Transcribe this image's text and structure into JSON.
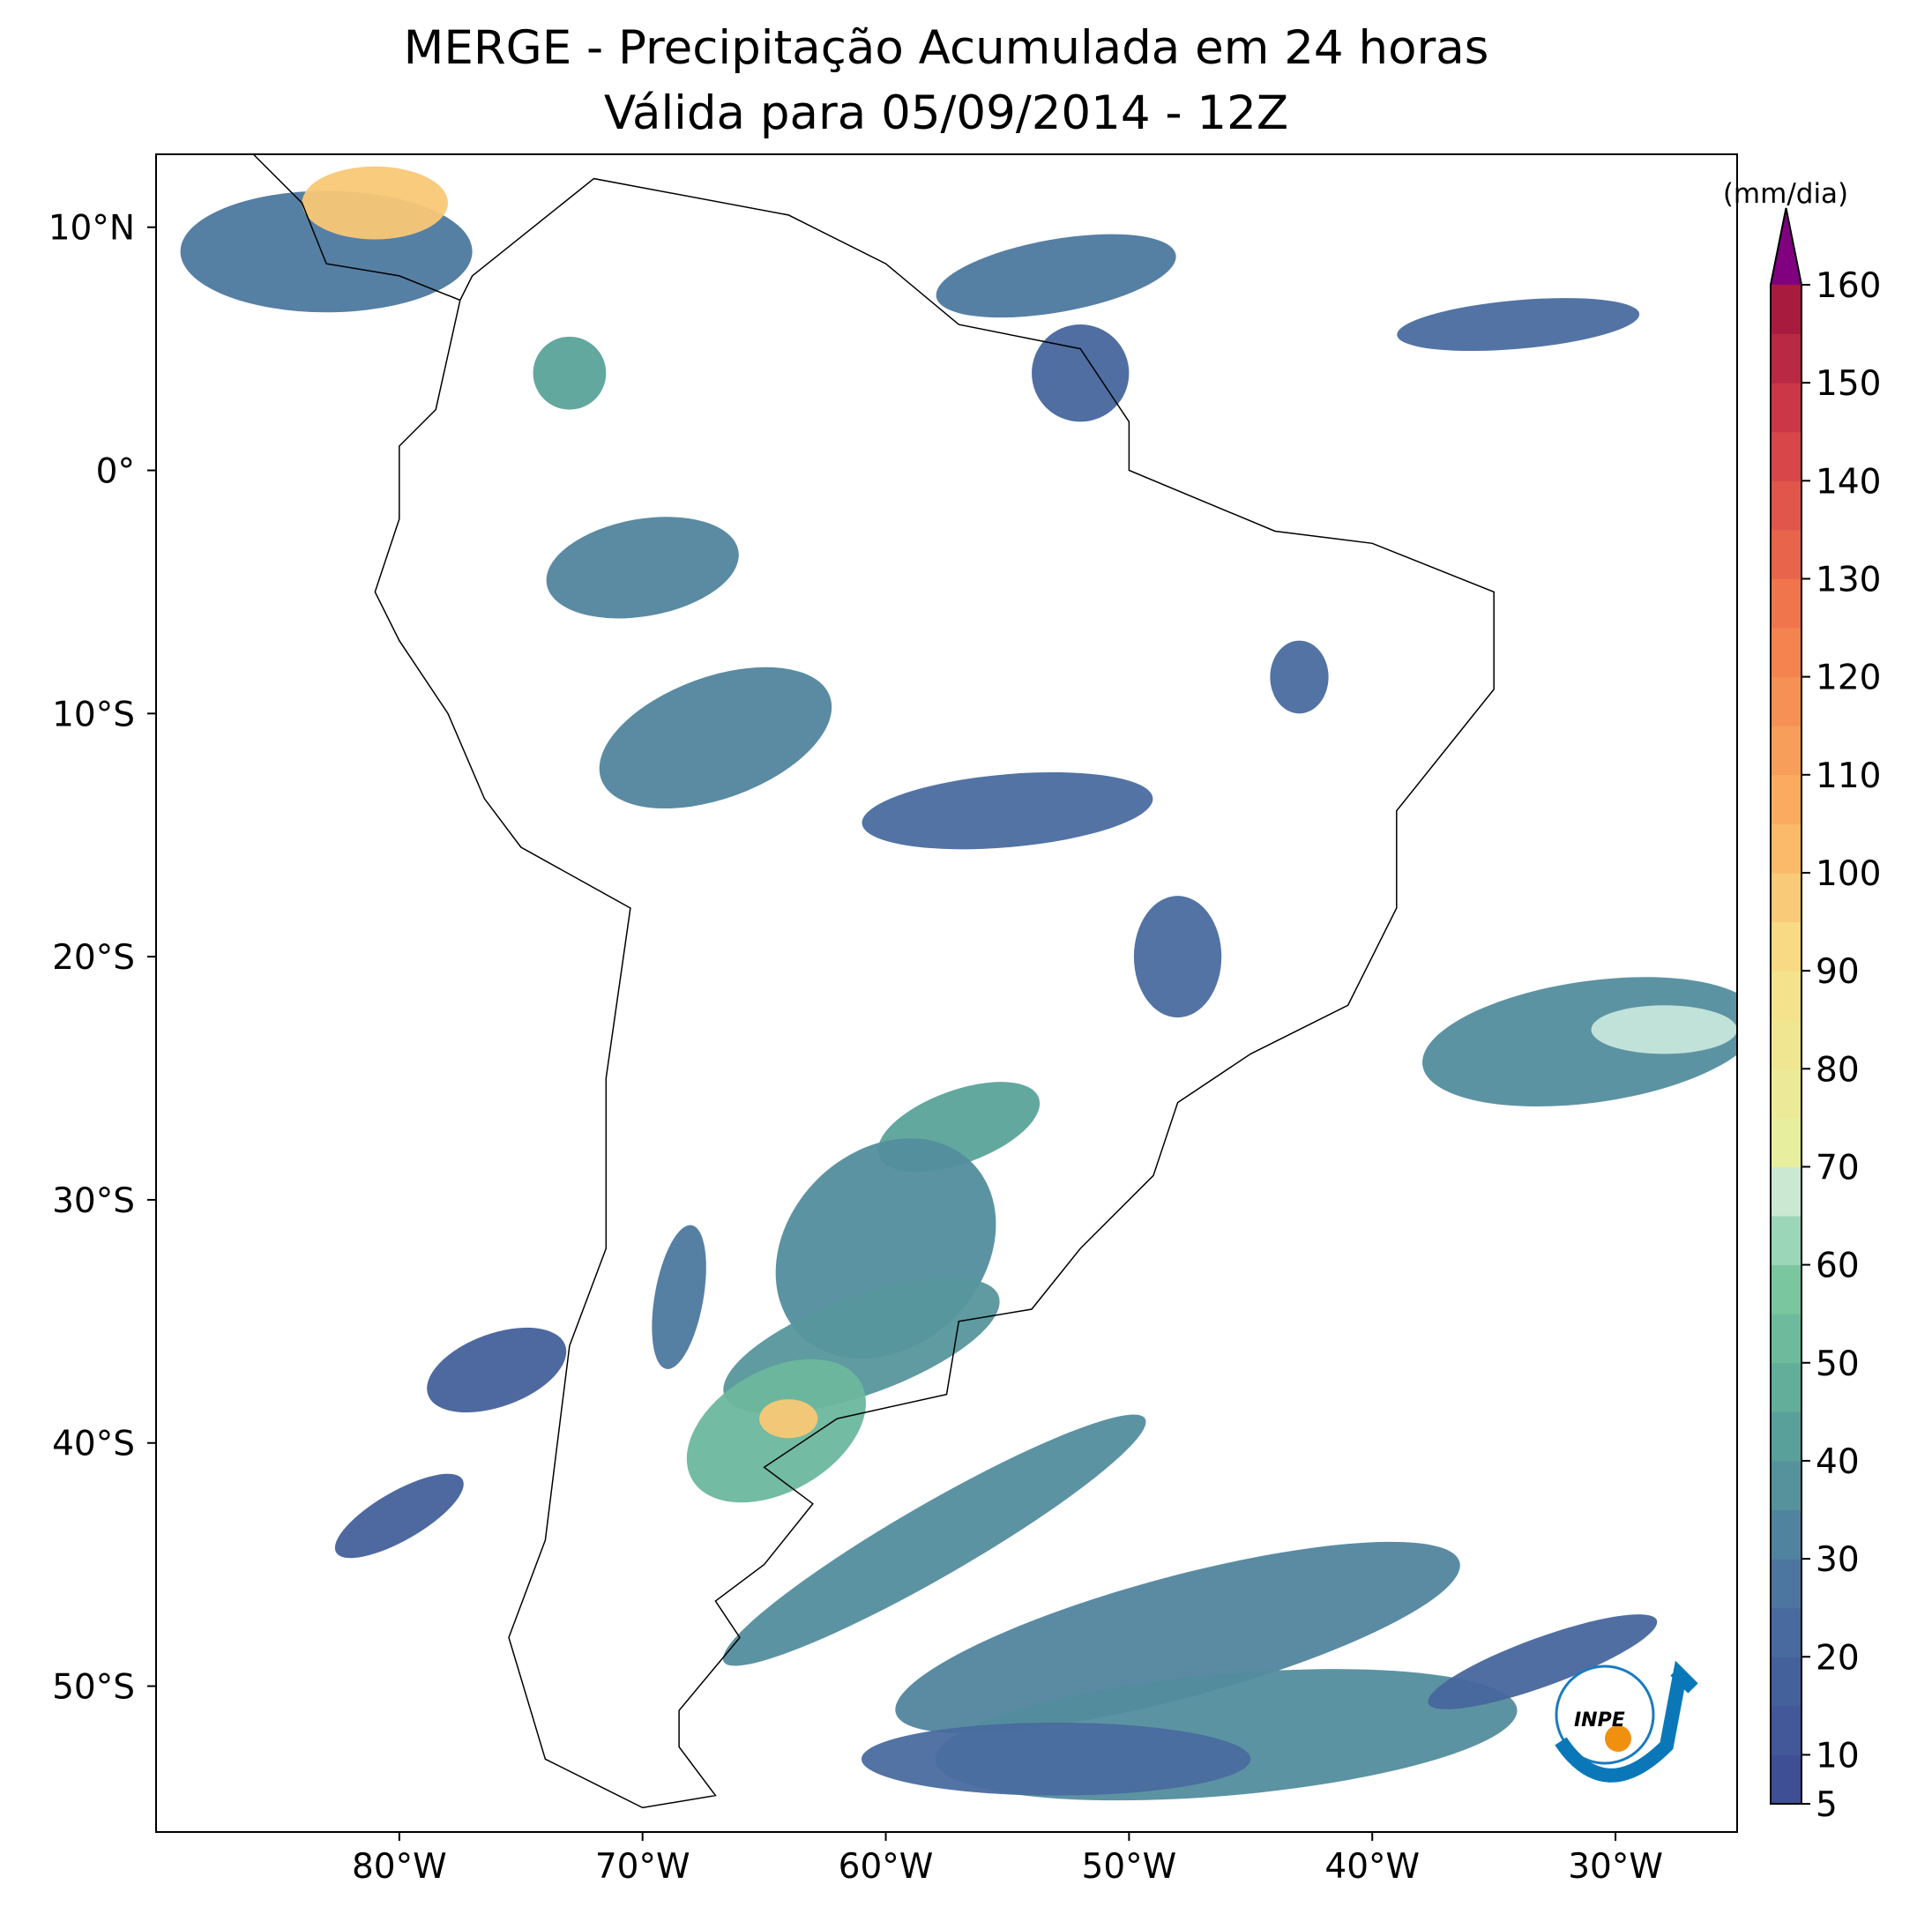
{
  "map": {
    "title": "MERGE - Precipitação Acumulada em 24 horas",
    "subtitle": "Válida para 05/09/2014 - 12Z",
    "xlim": [
      -90,
      -25
    ],
    "ylim": [
      -56,
      13
    ],
    "xticks": [
      {
        "value": -80,
        "label": "80°W"
      },
      {
        "value": -70,
        "label": "70°W"
      },
      {
        "value": -60,
        "label": "60°W"
      },
      {
        "value": -50,
        "label": "50°W"
      },
      {
        "value": -40,
        "label": "40°W"
      },
      {
        "value": -30,
        "label": "30°W"
      }
    ],
    "yticks": [
      {
        "value": 10,
        "label": "10°N"
      },
      {
        "value": 0,
        "label": "0°"
      },
      {
        "value": -10,
        "label": "10°S"
      },
      {
        "value": -20,
        "label": "20°S"
      },
      {
        "value": -30,
        "label": "30°S"
      },
      {
        "value": -40,
        "label": "40°S"
      },
      {
        "value": -50,
        "label": "50°S"
      }
    ],
    "colorbar": {
      "label": "(mm/dia)",
      "clim": [
        5,
        160
      ],
      "ticks": [
        5,
        10,
        20,
        30,
        40,
        50,
        60,
        70,
        80,
        90,
        100,
        110,
        120,
        130,
        140,
        150,
        160
      ]
    },
    "logo": "INPE"
  }
}
